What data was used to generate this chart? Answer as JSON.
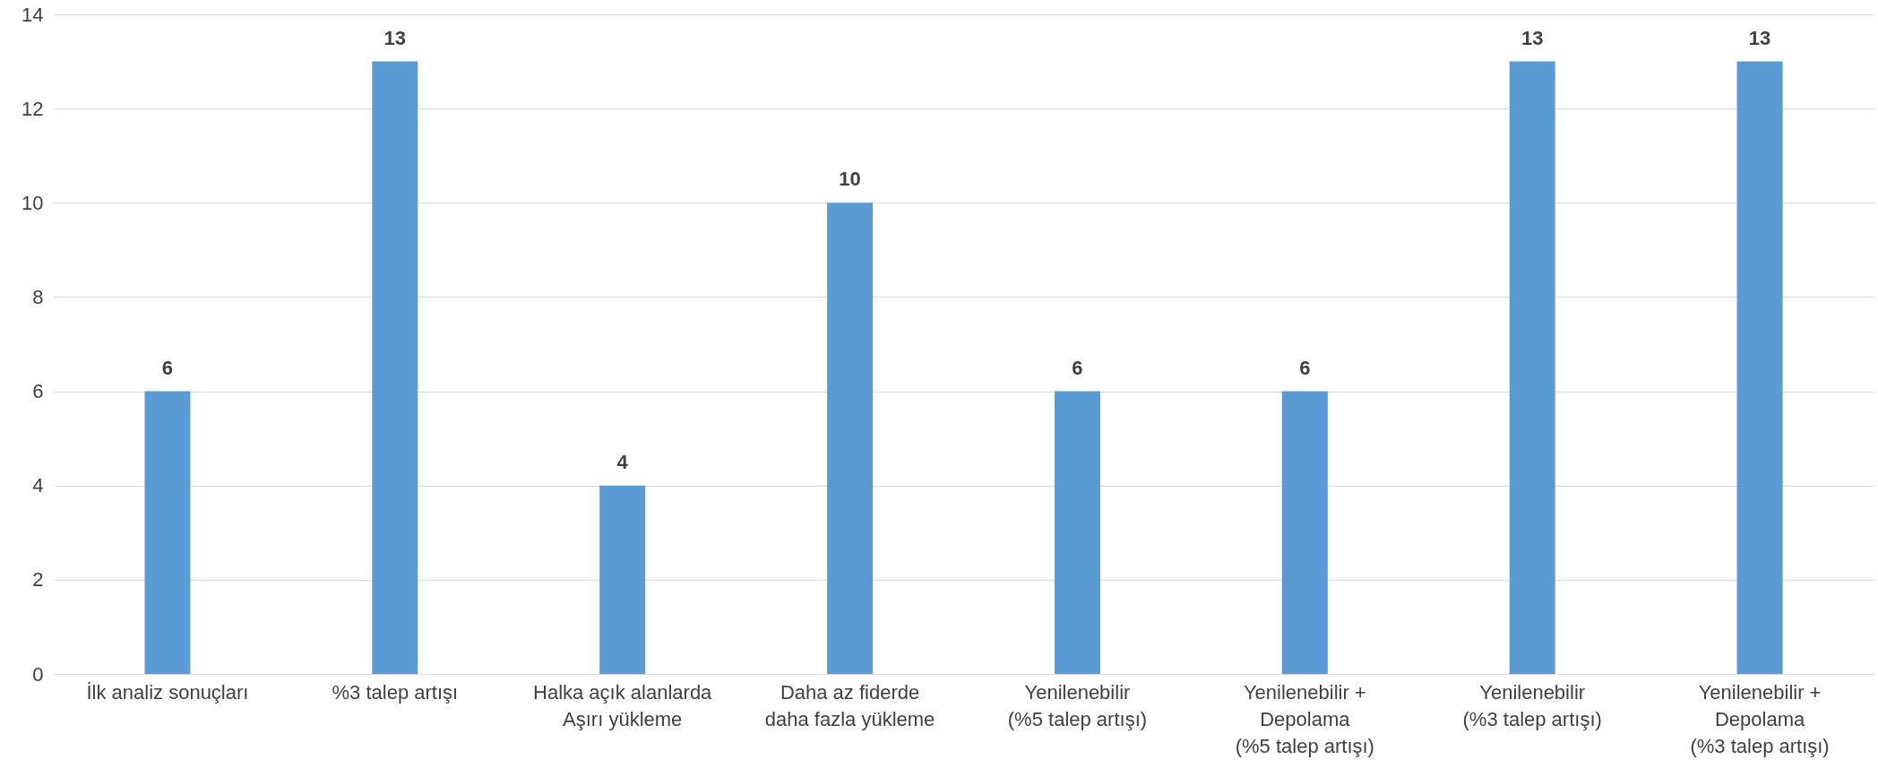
{
  "chart_data": {
    "type": "bar",
    "categories": [
      "İlk analiz sonuçları",
      "%3 talep artışı",
      "Halka açık alanlarda\nAşırı yükleme",
      "Daha az fiderde\ndaha fazla yükleme",
      "Yenilenebilir\n(%5 talep artışı)",
      "Yenilenebilir +\nDepolama\n(%5 talep artışı)",
      "Yenilenebilir\n(%3 talep artışı)",
      "Yenilenebilir +\nDepolama\n(%3 talep artışı)"
    ],
    "values": [
      6,
      13,
      4,
      10,
      6,
      6,
      13,
      13
    ],
    "color": "#5b9bd5",
    "ylim": [
      0,
      14
    ],
    "yticks": [
      0,
      2,
      4,
      6,
      8,
      10,
      12,
      14
    ],
    "grid": "y",
    "data_labels": true
  }
}
